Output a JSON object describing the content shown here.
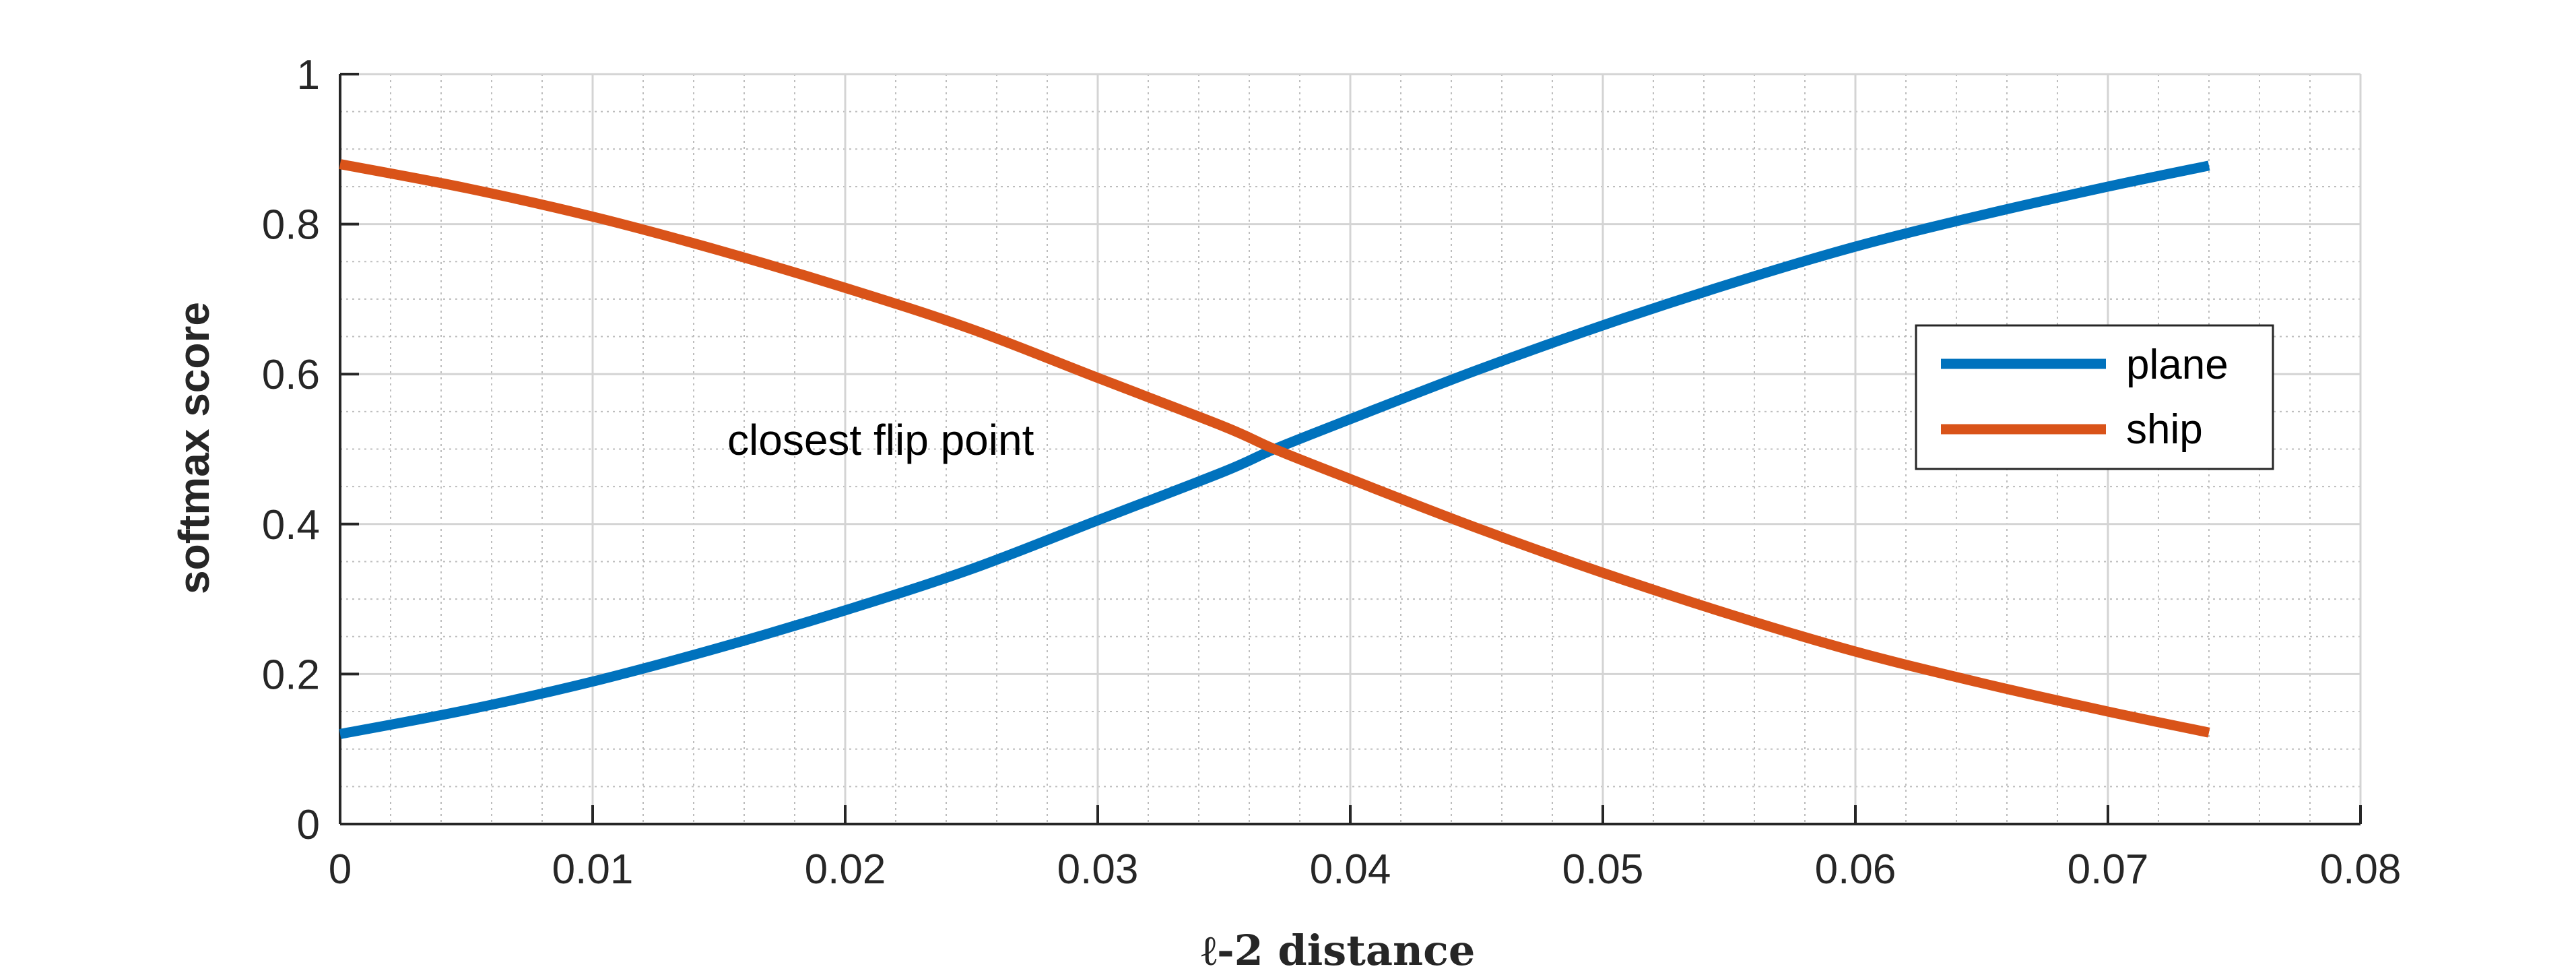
{
  "chart_data": {
    "type": "line",
    "xlabel": "ℓ-2 distance",
    "ylabel": "softmax score",
    "xlim": [
      0,
      0.08
    ],
    "ylim": [
      0,
      1
    ],
    "xticks": [
      "0",
      "0.01",
      "0.02",
      "0.03",
      "0.04",
      "0.05",
      "0.06",
      "0.07",
      "0.08"
    ],
    "yticks": [
      "0",
      "0.2",
      "0.4",
      "0.6",
      "0.8",
      "1"
    ],
    "grid": true,
    "minor_grid": true,
    "legend_position": "right",
    "annotation": "closest flip point",
    "x": [
      0,
      0.005,
      0.01,
      0.015,
      0.02,
      0.025,
      0.03,
      0.035,
      0.037,
      0.04,
      0.045,
      0.05,
      0.055,
      0.06,
      0.065,
      0.07,
      0.074
    ],
    "series": [
      {
        "name": "plane",
        "color": "#0072BD",
        "values": [
          0.12,
          0.152,
          0.19,
          0.235,
          0.285,
          0.34,
          0.405,
          0.47,
          0.5,
          0.54,
          0.605,
          0.665,
          0.72,
          0.77,
          0.812,
          0.85,
          0.878
        ]
      },
      {
        "name": "ship",
        "color": "#D95319",
        "values": [
          0.88,
          0.848,
          0.81,
          0.765,
          0.715,
          0.66,
          0.595,
          0.53,
          0.5,
          0.46,
          0.395,
          0.335,
          0.28,
          0.23,
          0.188,
          0.15,
          0.122
        ]
      }
    ]
  }
}
